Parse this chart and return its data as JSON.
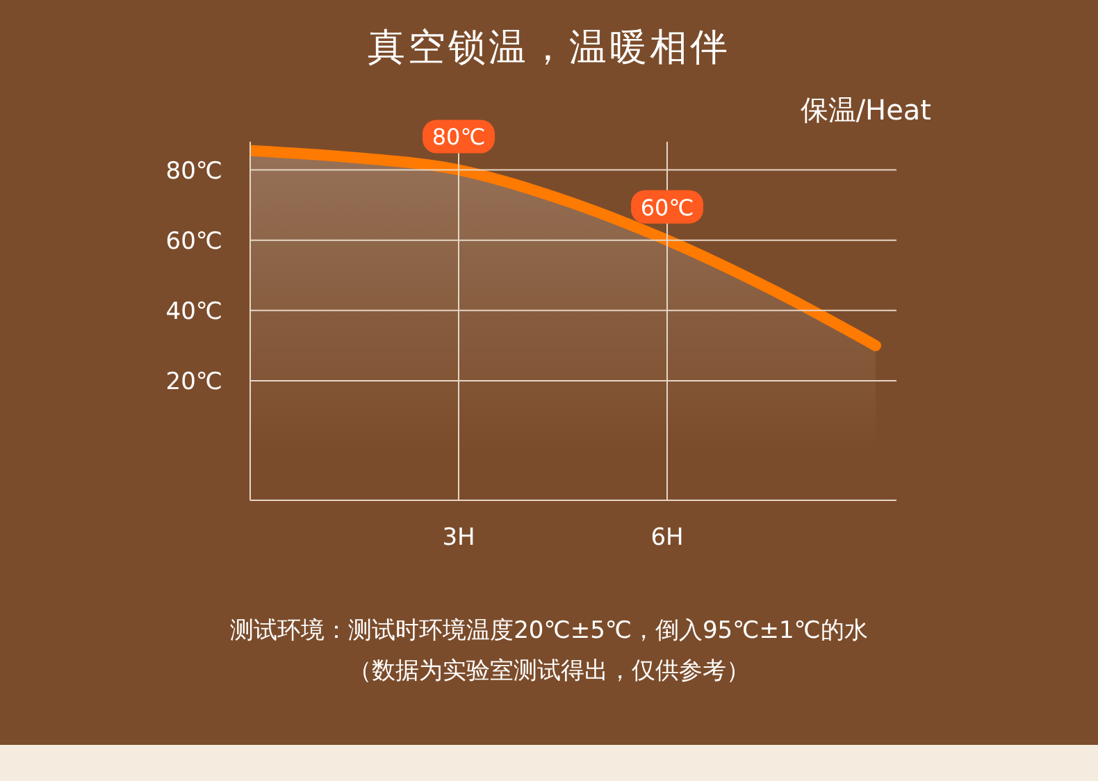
{
  "chart_data": {
    "type": "area",
    "title": "真空锁温，温暖相伴",
    "ylabel": "保温/Heat",
    "x": [
      0,
      1.5,
      3,
      4.5,
      6,
      7.5,
      9
    ],
    "series": [
      {
        "color": "#ff7a00",
        "values": [
          85.5,
          83.5,
          80,
          71.5,
          60,
          46,
          30
        ]
      }
    ],
    "xlim": [
      0,
      9.3
    ],
    "xticks": [
      {
        "value": 3,
        "label": "3H"
      },
      {
        "value": 6,
        "label": "6H"
      }
    ],
    "ylim": [
      -14,
      88
    ],
    "yticks": [
      {
        "value": 20,
        "label": "20℃"
      },
      {
        "value": 40,
        "label": "40℃"
      },
      {
        "value": 60,
        "label": "60℃"
      },
      {
        "value": 80,
        "label": "80℃"
      }
    ],
    "grid": true,
    "legend": false,
    "annotations": [
      {
        "text": "80℃",
        "x": 3,
        "y": 80
      },
      {
        "text": "60℃",
        "x": 6,
        "y": 60
      },
      "测试环境：测试时环境温度20℃±5℃，倒入95℃±1℃的水",
      "（数据为实验室测试得出，仅供参考）"
    ]
  }
}
